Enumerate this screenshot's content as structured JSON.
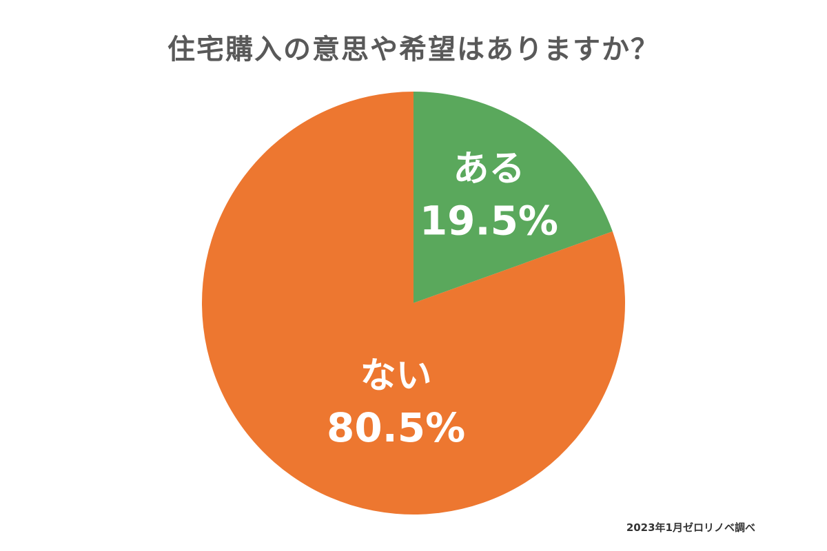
{
  "chart_data": {
    "type": "pie",
    "title": "住宅購入の意思や希望はありますか？",
    "slices": [
      {
        "label": "ある",
        "value": 19.5,
        "value_label": "19.5%",
        "color": "#5aa85c"
      },
      {
        "label": "ない",
        "value": 80.5,
        "value_label": "80.5%",
        "color": "#ed7730"
      }
    ],
    "start": "12 o'clock",
    "direction": "clockwise"
  },
  "source": "2023年1月ゼロリノベ調べ"
}
